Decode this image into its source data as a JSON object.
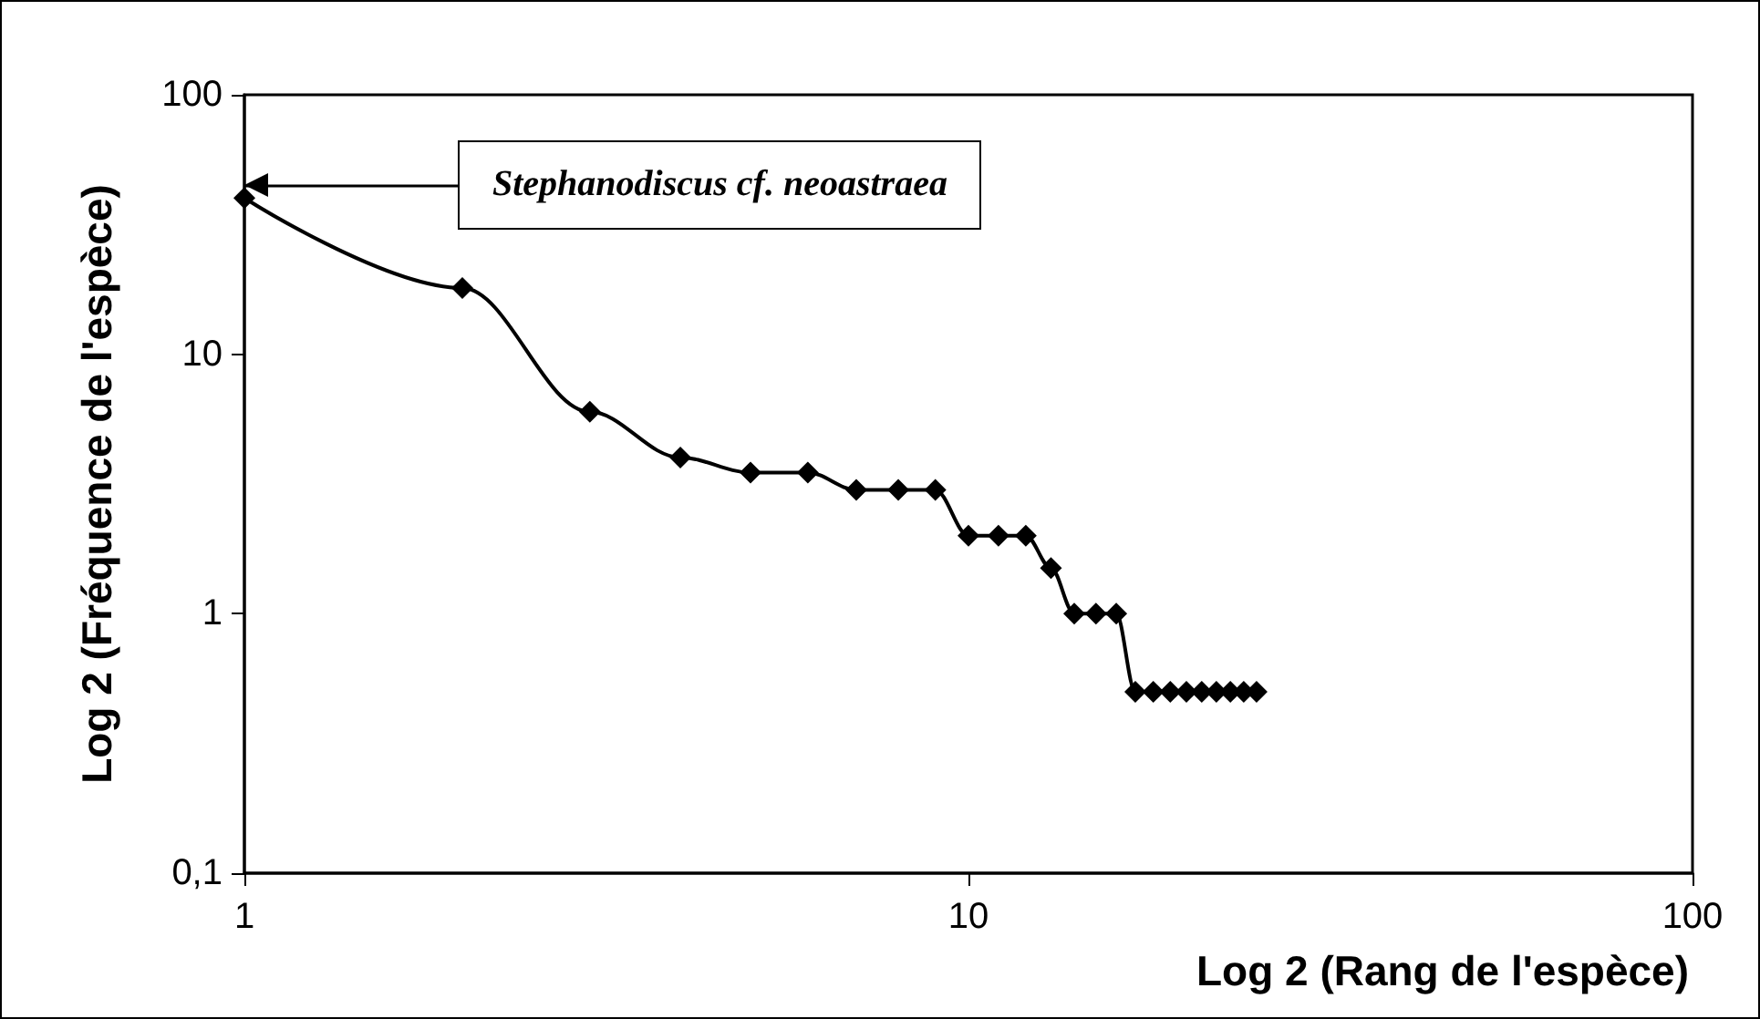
{
  "chart_data": {
    "type": "line",
    "xlabel": "Log 2 (Rang de l'espèce)",
    "ylabel": "Log 2 (Fréquence de l'espèce)",
    "x": [
      1,
      2,
      3,
      4,
      5,
      6,
      7,
      8,
      9,
      10,
      11,
      12,
      13,
      14,
      15,
      16,
      17,
      18,
      19,
      20,
      21,
      22,
      23,
      24,
      25
    ],
    "series": [
      {
        "color": "#000000",
        "values": [
          40,
          18,
          6,
          4,
          3.5,
          3.5,
          3,
          3,
          3,
          2,
          2,
          2,
          1.5,
          1,
          1,
          1,
          0.5,
          0.5,
          0.5,
          0.5,
          0.5,
          0.5,
          0.5,
          0.5,
          0.5
        ]
      }
    ],
    "log": "xy",
    "xlim": [
      1,
      100
    ],
    "xticks": [
      1,
      10,
      100
    ],
    "ylim": [
      0.1,
      100
    ],
    "yticks": [
      {
        "value": 0.1,
        "label": "0,1"
      },
      1,
      10,
      100
    ],
    "marker": "diamond",
    "line_style": "solid",
    "grid": false,
    "annotations": [
      {
        "text": "Stephanodiscus cf. neoastraea",
        "x": 1,
        "y": 45
      }
    ]
  }
}
